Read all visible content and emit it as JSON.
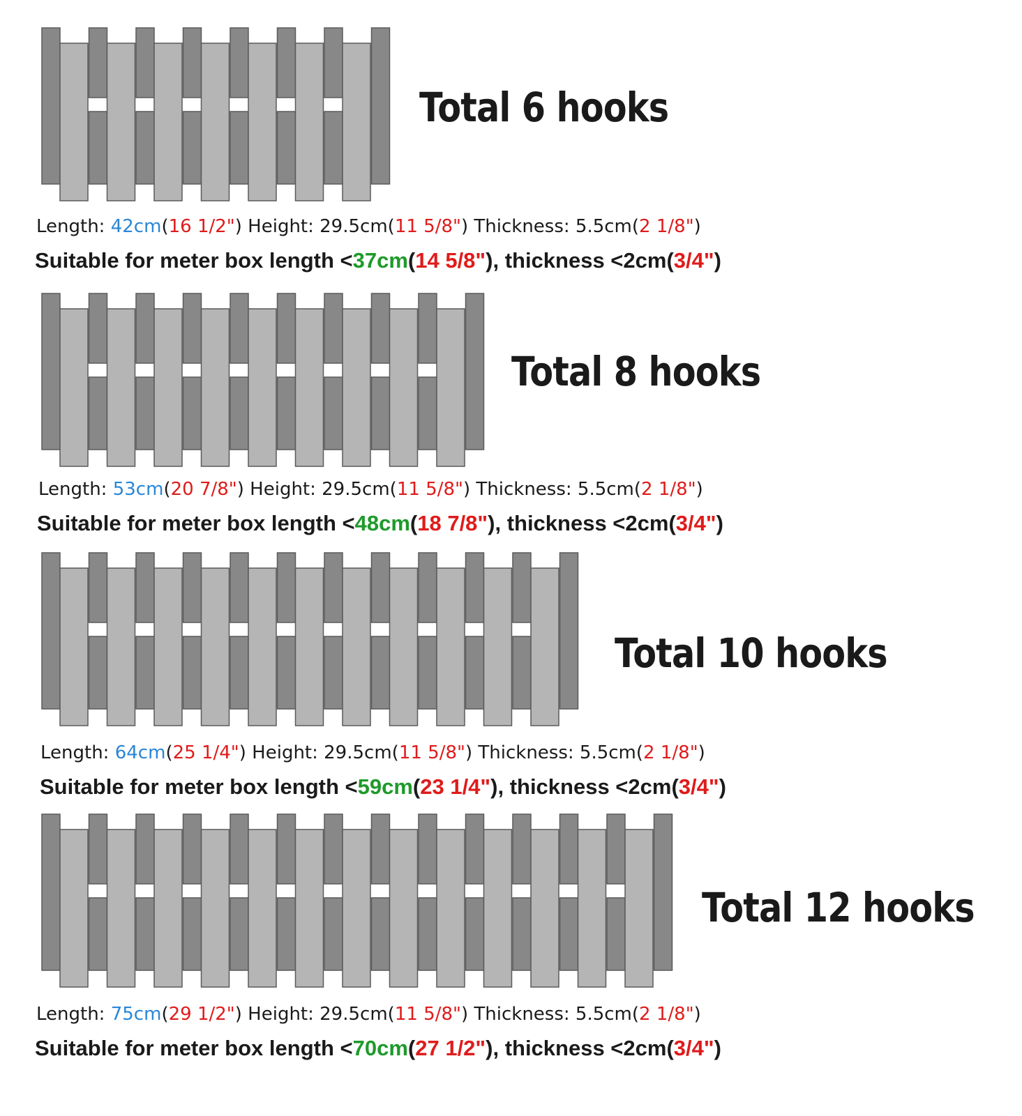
{
  "colors": {
    "blue": "#2a86d6",
    "red": "#e01b1b",
    "green": "#1e9a2a",
    "dark_bar": "#888888",
    "light_bar": "#b5b5b5"
  },
  "icons": [
    "hook-rack-illustration"
  ],
  "panels": [
    {
      "title": "Total 6 hooks",
      "hooks": 6,
      "specs": {
        "length_label": "Length: ",
        "length_cm": "42cm",
        "length_in": "16 1/2\"",
        "height_label": " Height: 29.5cm",
        "height_in": "11 5/8\"",
        "thickness_label": " Thickness: 5.5cm",
        "thickness_in": "2 1/8\""
      },
      "suit": {
        "prefix": "Suitable for meter box length <",
        "length_cm": "37cm",
        "length_in": "14 5/8\"",
        "mid": "thickness <2cm",
        "thickness_in": "3/4\""
      }
    },
    {
      "title": "Total 8 hooks",
      "hooks": 8,
      "specs": {
        "length_label": "Length: ",
        "length_cm": "53cm",
        "length_in": "20 7/8\"",
        "height_label": " Height: 29.5cm",
        "height_in": "11 5/8\"",
        "thickness_label": " Thickness: 5.5cm",
        "thickness_in": "2 1/8\""
      },
      "suit": {
        "prefix": "Suitable for meter box length <",
        "length_cm": "48cm",
        "length_in": "18 7/8\"",
        "mid": "thickness <2cm",
        "thickness_in": "3/4\""
      }
    },
    {
      "title": "Total 10 hooks",
      "hooks": 10,
      "specs": {
        "length_label": "Length: ",
        "length_cm": "64cm",
        "length_in": "25 1/4\"",
        "height_label": " Height: 29.5cm",
        "height_in": "11 5/8\"",
        "thickness_label": " Thickness: 5.5cm",
        "thickness_in": "2 1/8\""
      },
      "suit": {
        "prefix": "Suitable for meter box length <",
        "length_cm": "59cm",
        "length_in": "23 1/4\"",
        "mid": "thickness <2cm",
        "thickness_in": "3/4\""
      }
    },
    {
      "title": "Total 12 hooks",
      "hooks": 12,
      "specs": {
        "length_label": "Length: ",
        "length_cm": "75cm",
        "length_in": "29 1/2\"",
        "height_label": " Height: 29.5cm",
        "height_in": "11 5/8\"",
        "thickness_label": " Thickness: 5.5cm",
        "thickness_in": "2 1/8\""
      },
      "suit": {
        "prefix": "Suitable for meter box length <",
        "length_cm": "70cm",
        "length_in": "27 1/2\"",
        "mid": "thickness <2cm",
        "thickness_in": "3/4\""
      }
    }
  ]
}
